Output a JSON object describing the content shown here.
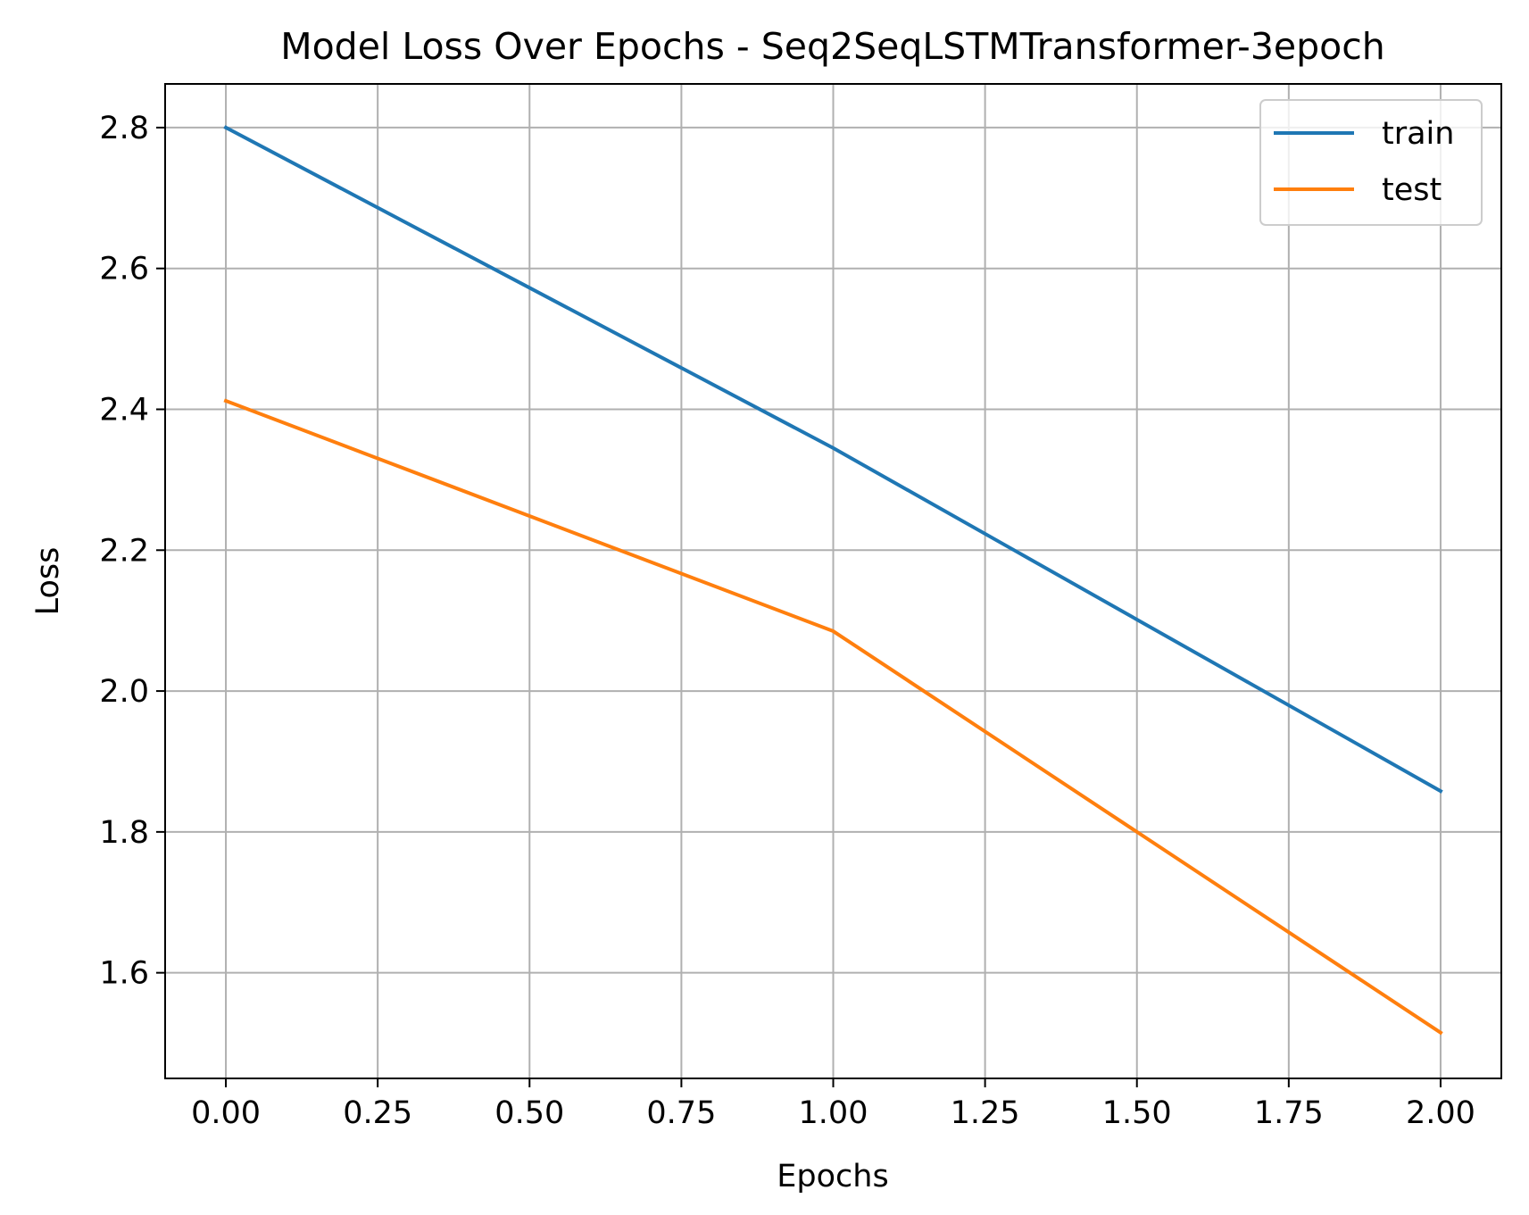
{
  "chart_data": {
    "type": "line",
    "title": "Model Loss Over Epochs - Seq2SeqLSTMTransformer-3epoch",
    "xlabel": "Epochs",
    "ylabel": "Loss",
    "x": [
      0,
      1,
      2
    ],
    "series": [
      {
        "name": "train",
        "color": "#1f77b4",
        "values": [
          2.8,
          2.345,
          1.858
        ]
      },
      {
        "name": "test",
        "color": "#ff7f0e",
        "values": [
          2.412,
          2.085,
          1.515
        ]
      }
    ],
    "xlim": [
      -0.1,
      2.1
    ],
    "ylim": [
      1.45,
      2.862
    ],
    "xticks": [
      0.0,
      0.25,
      0.5,
      0.75,
      1.0,
      1.25,
      1.5,
      1.75,
      2.0
    ],
    "xtick_labels": [
      "0.00",
      "0.25",
      "0.50",
      "0.75",
      "1.00",
      "1.25",
      "1.50",
      "1.75",
      "2.00"
    ],
    "yticks": [
      1.6,
      1.8,
      2.0,
      2.2,
      2.4,
      2.6,
      2.8
    ],
    "ytick_labels": [
      "1.6",
      "1.8",
      "2.0",
      "2.2",
      "2.4",
      "2.6",
      "2.8"
    ],
    "grid": true,
    "legend_position": "top-right"
  }
}
